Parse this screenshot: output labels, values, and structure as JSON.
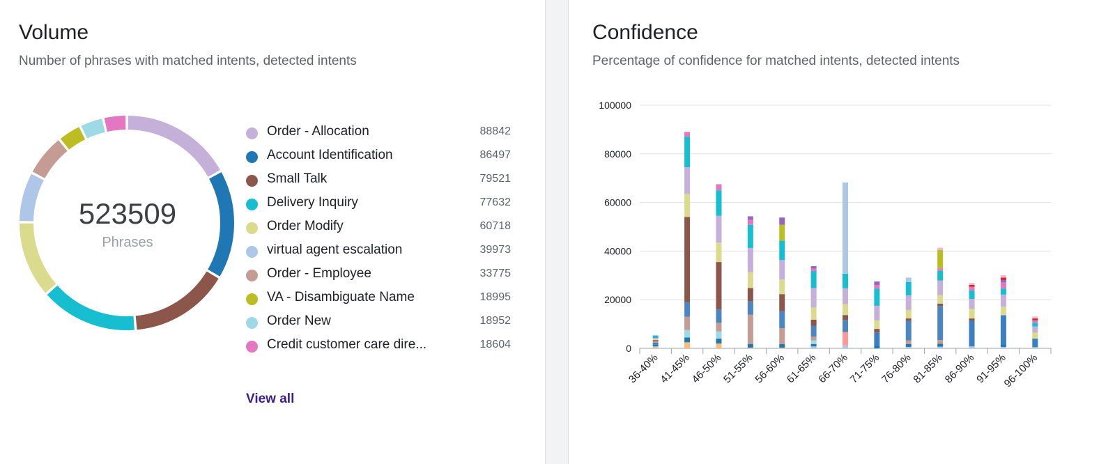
{
  "volume": {
    "title": "Volume",
    "subtitle": "Number of phrases with matched intents, detected intents",
    "total": "523509",
    "total_unit": "Phrases",
    "view_all": "View all"
  },
  "confidence": {
    "title": "Confidence",
    "subtitle": "Percentage of confidence for matched intents, detected intents"
  },
  "chart_data": [
    {
      "type": "pie",
      "donut": true,
      "center_value": "523509",
      "center_label": "Phrases",
      "slices": [
        {
          "label": "Order - Allocation",
          "display_value": "88842",
          "value": 88842,
          "color": "#c5b0d9"
        },
        {
          "label": "Account Identification",
          "display_value": "86497",
          "value": 86497,
          "color": "#1f77b4"
        },
        {
          "label": "Small Talk",
          "display_value": "79521",
          "value": 79521,
          "color": "#8c564b"
        },
        {
          "label": "Delivery Inquiry",
          "display_value": "77632",
          "value": 77632,
          "color": "#17becf"
        },
        {
          "label": "Order Modify",
          "display_value": "60718",
          "value": 60718,
          "color": "#dbdb8d"
        },
        {
          "label": "virtual agent escalation",
          "display_value": "39973",
          "value": 39973,
          "color": "#aec7e8"
        },
        {
          "label": "Order - Employee",
          "display_value": "33775",
          "value": 33775,
          "color": "#c49c94"
        },
        {
          "label": "VA - Disambiguate Name",
          "display_value": "18995",
          "value": 18995,
          "color": "#bcbd22"
        },
        {
          "label": "Order New",
          "display_value": "18952",
          "value": 18952,
          "color": "#9edae5"
        },
        {
          "label": "Credit customer care dire...",
          "display_value": "18604",
          "value": 18604,
          "color": "#e377c2"
        }
      ]
    },
    {
      "type": "bar",
      "stacked": true,
      "categories": [
        "36-40%",
        "41-45%",
        "46-50%",
        "51-55%",
        "56-60%",
        "61-65%",
        "66-70%",
        "71-75%",
        "76-80%",
        "81-85%",
        "86-90%",
        "91-95%",
        "96-100%"
      ],
      "y_ticks": [
        "0",
        "20000",
        "40000",
        "60000",
        "80000",
        "100000"
      ],
      "ylim": [
        0,
        100000
      ],
      "grid": true,
      "series": [
        {
          "color": "#aec7e8",
          "values": [
            300,
            0,
            0,
            0,
            0,
            800,
            1200,
            0,
            600,
            700,
            800,
            600,
            500
          ]
        },
        {
          "color": "#ffbb78",
          "values": [
            500,
            2500,
            2000,
            300,
            300,
            0,
            0,
            0,
            0,
            0,
            0,
            0,
            0
          ]
        },
        {
          "color": "#1f77b4",
          "values": [
            700,
            2000,
            2000,
            1500,
            1500,
            1000,
            0,
            1000,
            1200,
            1200,
            0,
            1000,
            0
          ]
        },
        {
          "color": "#9edae5",
          "values": [
            0,
            3000,
            3000,
            0,
            0,
            1500,
            0,
            0,
            0,
            0,
            0,
            0,
            0
          ]
        },
        {
          "color": "#ff9896",
          "values": [
            0,
            0,
            0,
            0,
            0,
            0,
            5500,
            0,
            0,
            0,
            0,
            0,
            0
          ]
        },
        {
          "color": "#3a7fc0",
          "values": [
            800,
            0,
            0,
            0,
            0,
            0,
            0,
            5500,
            0,
            0,
            10500,
            12000,
            3500
          ]
        },
        {
          "color": "#c49c94",
          "values": [
            600,
            5500,
            3500,
            12000,
            6500,
            1500,
            0,
            0,
            1500,
            1500,
            0,
            0,
            0
          ]
        },
        {
          "color": "#4b86c2",
          "values": [
            0,
            6000,
            5500,
            5500,
            7000,
            4500,
            5000,
            0,
            8000,
            14000,
            0,
            0,
            0
          ]
        },
        {
          "color": "#8c564b",
          "values": [
            500,
            35000,
            19500,
            5500,
            7000,
            2500,
            2000,
            1500,
            1000,
            1000,
            1000,
            0,
            0
          ]
        },
        {
          "color": "#dbdb8d",
          "values": [
            400,
            9500,
            8000,
            6500,
            6000,
            5000,
            4500,
            3500,
            3500,
            3500,
            4000,
            3500,
            2500
          ]
        },
        {
          "color": "#c5b0d9",
          "values": [
            500,
            11000,
            11000,
            10000,
            8000,
            8000,
            6500,
            6000,
            6000,
            6000,
            4000,
            5000,
            2500
          ]
        },
        {
          "color": "#17becf",
          "values": [
            1000,
            12500,
            10500,
            9500,
            8000,
            7000,
            6000,
            7000,
            5500,
            4000,
            3500,
            2500,
            1500
          ]
        },
        {
          "color": "#aec7e8",
          "values": [
            0,
            0,
            0,
            0,
            0,
            0,
            37500,
            0,
            1800,
            0,
            0,
            0,
            0
          ]
        },
        {
          "color": "#e377c2",
          "values": [
            0,
            2000,
            2500,
            2000,
            0,
            1000,
            0,
            1500,
            0,
            1000,
            1500,
            2500,
            1000
          ]
        },
        {
          "color": "#bcbd22",
          "values": [
            0,
            0,
            0,
            0,
            6500,
            0,
            0,
            0,
            0,
            7500,
            0,
            0,
            0
          ]
        },
        {
          "color": "#9467bd",
          "values": [
            0,
            0,
            0,
            1500,
            3000,
            1000,
            0,
            1500,
            0,
            0,
            0,
            1000,
            0
          ]
        },
        {
          "color": "#d62728",
          "values": [
            0,
            0,
            0,
            0,
            0,
            0,
            0,
            0,
            0,
            0,
            800,
            1000,
            800
          ]
        },
        {
          "color": "#f7b6d2",
          "values": [
            0,
            0,
            0,
            0,
            0,
            0,
            0,
            0,
            0,
            1000,
            800,
            1000,
            800
          ]
        }
      ]
    }
  ]
}
